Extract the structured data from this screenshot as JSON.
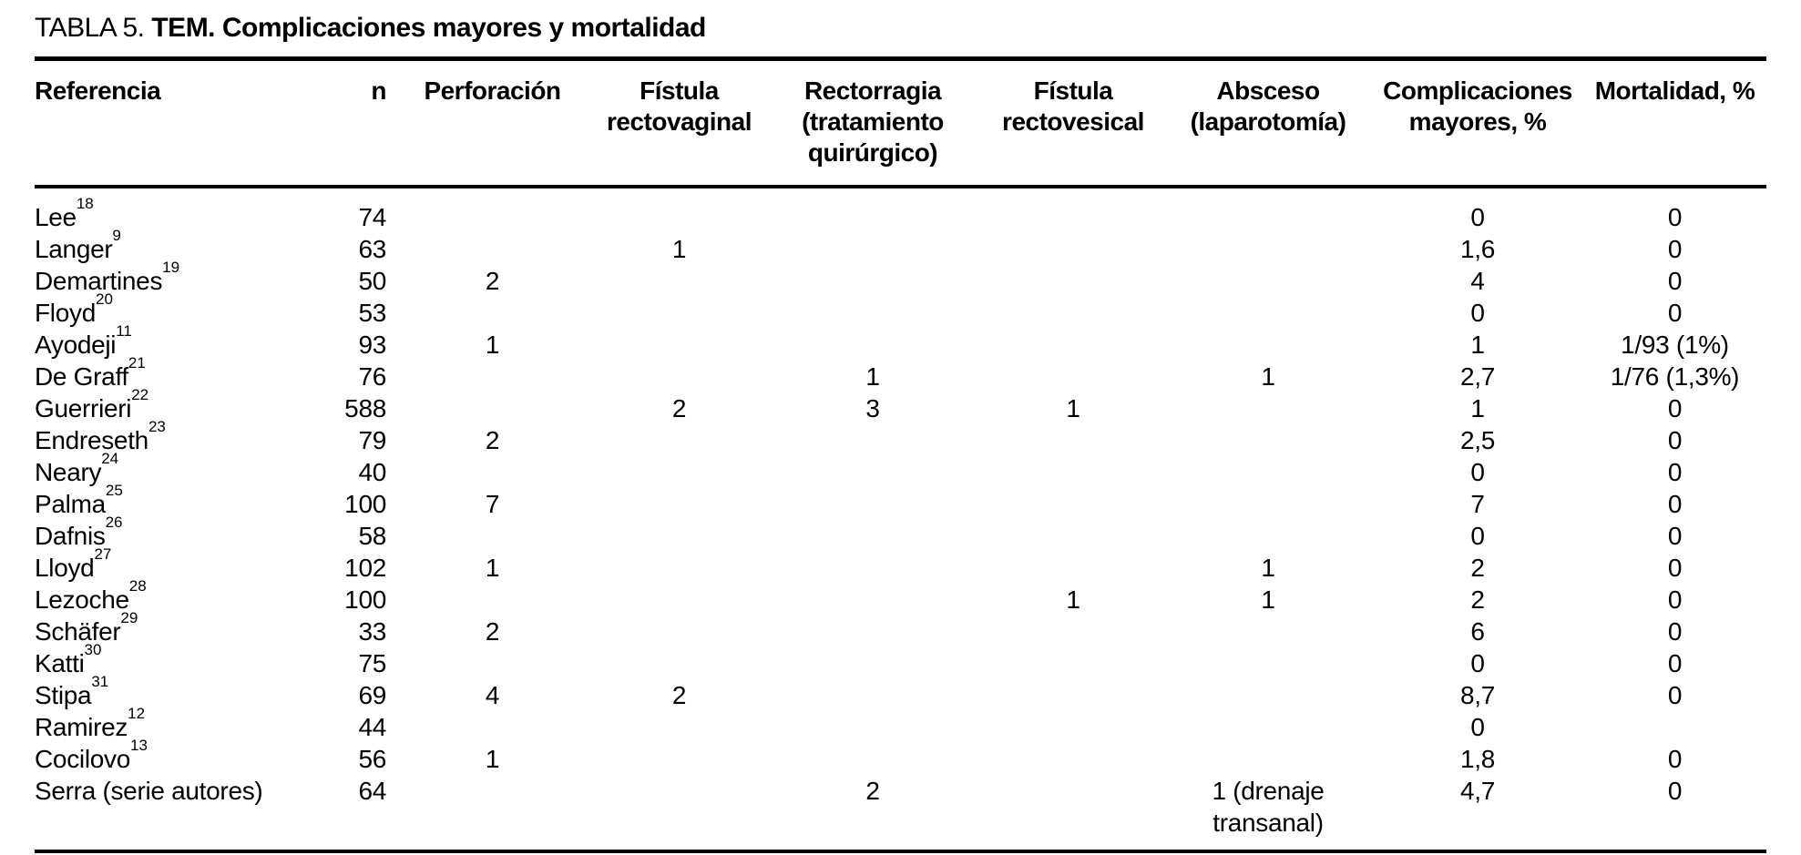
{
  "title": {
    "label": "TABLA 5.",
    "text": "TEM. Complicaciones mayores y mortalidad"
  },
  "table": {
    "columns": [
      {
        "key": "referencia",
        "label": "Referencia",
        "align": "left"
      },
      {
        "key": "n",
        "label": "n",
        "align": "right"
      },
      {
        "key": "perforacion",
        "label": "Perforación",
        "align": "center"
      },
      {
        "key": "fistula_rectovaginal",
        "label": "Fístula\nrectovaginal",
        "align": "center"
      },
      {
        "key": "rectorragia",
        "label": "Rectorragia\n(tratamiento\nquirúrgico)",
        "align": "center"
      },
      {
        "key": "fistula_rectovesical",
        "label": "Fístula\nrectovesical",
        "align": "center"
      },
      {
        "key": "absceso",
        "label": "Absceso\n(laparotomía)",
        "align": "center"
      },
      {
        "key": "complicaciones",
        "label": "Complicaciones\nmayores, %",
        "align": "center"
      },
      {
        "key": "mortalidad",
        "label": "Mortalidad, %",
        "align": "center"
      }
    ],
    "rows": [
      {
        "referencia": "Lee",
        "sup": "18",
        "n": "74",
        "perforacion": "",
        "fistula_rectovaginal": "",
        "rectorragia": "",
        "fistula_rectovesical": "",
        "absceso": "",
        "complicaciones": "0",
        "mortalidad": "0"
      },
      {
        "referencia": "Langer",
        "sup": "9",
        "n": "63",
        "perforacion": "",
        "fistula_rectovaginal": "1",
        "rectorragia": "",
        "fistula_rectovesical": "",
        "absceso": "",
        "complicaciones": "1,6",
        "mortalidad": "0"
      },
      {
        "referencia": "Demartines",
        "sup": "19",
        "n": "50",
        "perforacion": "2",
        "fistula_rectovaginal": "",
        "rectorragia": "",
        "fistula_rectovesical": "",
        "absceso": "",
        "complicaciones": "4",
        "mortalidad": "0"
      },
      {
        "referencia": "Floyd",
        "sup": "20",
        "n": "53",
        "perforacion": "",
        "fistula_rectovaginal": "",
        "rectorragia": "",
        "fistula_rectovesical": "",
        "absceso": "",
        "complicaciones": "0",
        "mortalidad": "0"
      },
      {
        "referencia": "Ayodeji",
        "sup": "11",
        "n": "93",
        "perforacion": "1",
        "fistula_rectovaginal": "",
        "rectorragia": "",
        "fistula_rectovesical": "",
        "absceso": "",
        "complicaciones": "1",
        "mortalidad": "1/93 (1%)"
      },
      {
        "referencia": "De Graff",
        "sup": "21",
        "n": "76",
        "perforacion": "",
        "fistula_rectovaginal": "",
        "rectorragia": "1",
        "fistula_rectovesical": "",
        "absceso": "1",
        "complicaciones": "2,7",
        "mortalidad": "1/76 (1,3%)"
      },
      {
        "referencia": "Guerrieri",
        "sup": "22",
        "n": "588",
        "perforacion": "",
        "fistula_rectovaginal": "2",
        "rectorragia": "3",
        "fistula_rectovesical": "1",
        "absceso": "",
        "complicaciones": "1",
        "mortalidad": "0"
      },
      {
        "referencia": "Endreseth",
        "sup": "23",
        "n": "79",
        "perforacion": "2",
        "fistula_rectovaginal": "",
        "rectorragia": "",
        "fistula_rectovesical": "",
        "absceso": "",
        "complicaciones": "2,5",
        "mortalidad": "0"
      },
      {
        "referencia": "Neary",
        "sup": "24",
        "n": "40",
        "perforacion": "",
        "fistula_rectovaginal": "",
        "rectorragia": "",
        "fistula_rectovesical": "",
        "absceso": "",
        "complicaciones": "0",
        "mortalidad": "0"
      },
      {
        "referencia": "Palma",
        "sup": "25",
        "n": "100",
        "perforacion": "7",
        "fistula_rectovaginal": "",
        "rectorragia": "",
        "fistula_rectovesical": "",
        "absceso": "",
        "complicaciones": "7",
        "mortalidad": "0"
      },
      {
        "referencia": "Dafnis",
        "sup": "26",
        "n": "58",
        "perforacion": "",
        "fistula_rectovaginal": "",
        "rectorragia": "",
        "fistula_rectovesical": "",
        "absceso": "",
        "complicaciones": "0",
        "mortalidad": "0"
      },
      {
        "referencia": "Lloyd",
        "sup": "27",
        "n": "102",
        "perforacion": "1",
        "fistula_rectovaginal": "",
        "rectorragia": "",
        "fistula_rectovesical": "",
        "absceso": "1",
        "complicaciones": "2",
        "mortalidad": "0"
      },
      {
        "referencia": "Lezoche",
        "sup": "28",
        "n": "100",
        "perforacion": "",
        "fistula_rectovaginal": "",
        "rectorragia": "",
        "fistula_rectovesical": "1",
        "absceso": "1",
        "complicaciones": "2",
        "mortalidad": "0"
      },
      {
        "referencia": "Schäfer",
        "sup": "29",
        "n": "33",
        "perforacion": "2",
        "fistula_rectovaginal": "",
        "rectorragia": "",
        "fistula_rectovesical": "",
        "absceso": "",
        "complicaciones": "6",
        "mortalidad": "0"
      },
      {
        "referencia": "Katti",
        "sup": "30",
        "n": "75",
        "perforacion": "",
        "fistula_rectovaginal": "",
        "rectorragia": "",
        "fistula_rectovesical": "",
        "absceso": "",
        "complicaciones": "0",
        "mortalidad": "0"
      },
      {
        "referencia": "Stipa",
        "sup": "31",
        "n": "69",
        "perforacion": "4",
        "fistula_rectovaginal": "2",
        "rectorragia": "",
        "fistula_rectovesical": "",
        "absceso": "",
        "complicaciones": "8,7",
        "mortalidad": "0"
      },
      {
        "referencia": "Ramirez",
        "sup": "12",
        "n": "44",
        "perforacion": "",
        "fistula_rectovaginal": "",
        "rectorragia": "",
        "fistula_rectovesical": "",
        "absceso": "",
        "complicaciones": "0",
        "mortalidad": ""
      },
      {
        "referencia": "Cocilovo",
        "sup": "13",
        "n": "56",
        "perforacion": "1",
        "fistula_rectovaginal": "",
        "rectorragia": "",
        "fistula_rectovesical": "",
        "absceso": "",
        "complicaciones": "1,8",
        "mortalidad": "0"
      },
      {
        "referencia": "Serra (serie autores)",
        "sup": "",
        "n": "64",
        "perforacion": "",
        "fistula_rectovaginal": "",
        "rectorragia": "2",
        "fistula_rectovesical": "",
        "absceso": "1 (drenaje transanal)",
        "complicaciones": "4,7",
        "mortalidad": "0"
      }
    ]
  }
}
